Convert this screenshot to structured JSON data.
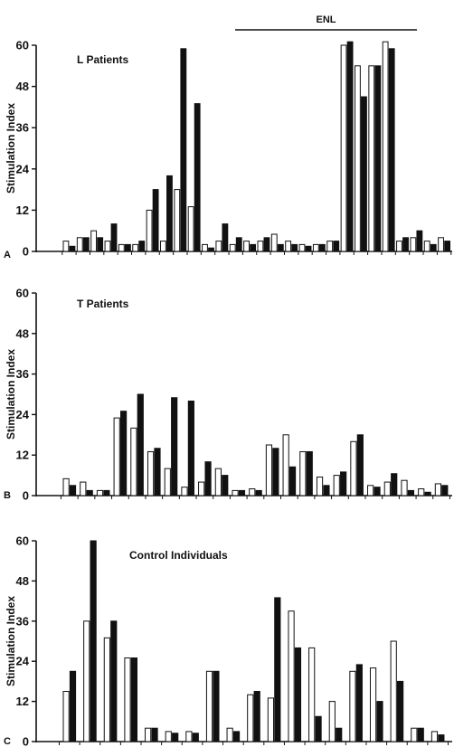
{
  "colors": {
    "ink": "#111111",
    "open_bar": "#ffffff",
    "filled_bar": "#111111",
    "background": "#ffffff"
  },
  "chart_data": [
    {
      "type": "bar",
      "panel_letter": "A",
      "title": "L   Patients",
      "ylabel": "Stimulation Index",
      "ylim": [
        0,
        60
      ],
      "yticks": [
        0,
        12,
        24,
        36,
        48,
        60
      ],
      "bracket_label": "ENL",
      "bracket_from_pair": 14,
      "bracket_to_pair": 23,
      "series": [
        {
          "name": "",
          "style": "open",
          "values": [
            3,
            4,
            6,
            3,
            2,
            2,
            12,
            3,
            18,
            13,
            2,
            3,
            2,
            3,
            3,
            5,
            3,
            2,
            2,
            3,
            60,
            54,
            54,
            61,
            3,
            4,
            3,
            4
          ]
        },
        {
          "name": "",
          "style": "filled",
          "values": [
            1.5,
            4,
            4,
            8,
            2,
            3,
            18,
            22,
            59,
            43,
            1,
            8,
            4,
            2,
            4,
            2,
            2,
            1.5,
            2,
            3,
            61,
            45,
            54,
            59,
            4,
            6,
            2,
            3
          ]
        }
      ]
    },
    {
      "type": "bar",
      "panel_letter": "B",
      "title": "T   Patients",
      "ylabel": "Stimulation Index",
      "ylim": [
        0,
        60
      ],
      "yticks": [
        0,
        12,
        24,
        36,
        48,
        60
      ],
      "series": [
        {
          "name": "",
          "style": "open",
          "values": [
            5,
            4,
            1.5,
            23,
            20,
            13,
            8,
            2.5,
            4,
            8,
            1.5,
            2,
            15,
            18,
            13,
            5.5,
            6,
            16,
            3,
            4,
            4.5,
            2,
            3.5
          ]
        },
        {
          "name": "",
          "style": "filled",
          "values": [
            3,
            1.5,
            1.5,
            25,
            30,
            14,
            29,
            28,
            10,
            6,
            1.5,
            1.5,
            14,
            8.5,
            13,
            3,
            7,
            18,
            2.5,
            6.5,
            1.5,
            1,
            3
          ]
        }
      ]
    },
    {
      "type": "bar",
      "panel_letter": "C",
      "title": "Control Individuals",
      "ylabel": "Stimulation Index",
      "ylim": [
        0,
        60
      ],
      "yticks": [
        0,
        12,
        24,
        36,
        48,
        60
      ],
      "series": [
        {
          "name": "",
          "style": "open",
          "values": [
            15,
            36,
            31,
            25,
            4,
            3,
            3,
            21,
            4,
            14,
            13,
            39,
            28,
            12,
            21,
            22,
            30,
            4,
            3
          ]
        },
        {
          "name": "",
          "style": "filled",
          "values": [
            21,
            60,
            36,
            25,
            4,
            2.5,
            2.5,
            21,
            3,
            15,
            43,
            28,
            7.5,
            4,
            23,
            12,
            18,
            4,
            2
          ]
        }
      ]
    }
  ]
}
